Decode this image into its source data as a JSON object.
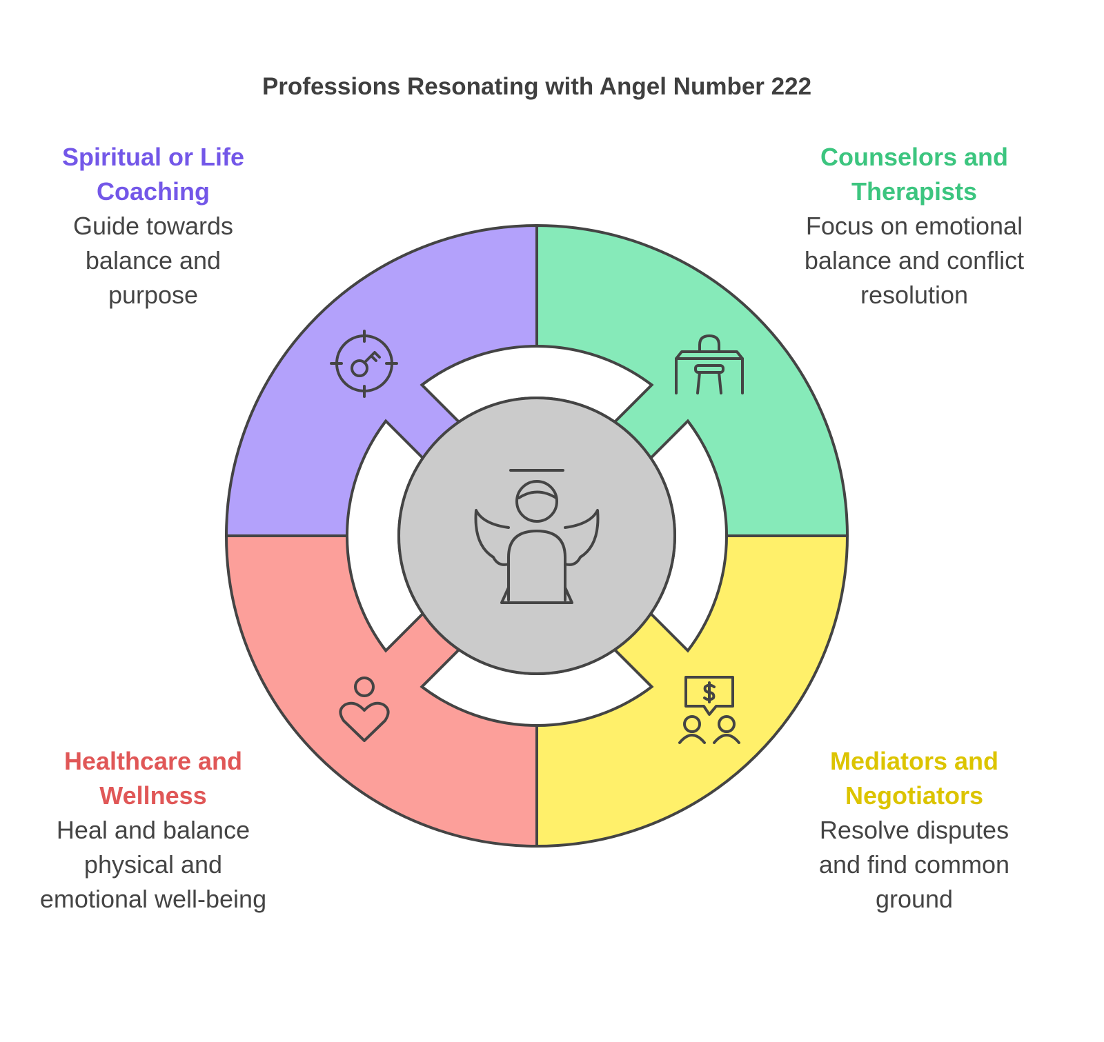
{
  "title": "Professions Resonating with Angel Number 222",
  "sections": [
    {
      "id": "spiritual",
      "title": "Spiritual or Life Coaching",
      "description": "Guide towards balance and purpose",
      "fill": "#b3a1fb",
      "title_color": "#7357e8",
      "icon": "target-key-icon"
    },
    {
      "id": "counselors",
      "title": "Counselors and Therapists",
      "description": "Focus on emotional balance and conflict resolution",
      "fill": "#86eab9",
      "title_color": "#3cc57f",
      "icon": "therapy-desk-icon"
    },
    {
      "id": "mediators",
      "title": "Mediators and Negotiators",
      "description": "Resolve disputes and find common ground",
      "fill": "#fff06a",
      "title_color": "#dcc400",
      "icon": "negotiation-icon"
    },
    {
      "id": "healthcare",
      "title": "Healthcare and Wellness",
      "description": "Heal and balance physical and emotional well-being",
      "fill": "#fc9f9a",
      "title_color": "#e05757",
      "icon": "person-heart-icon"
    }
  ],
  "center": {
    "fill": "#cbcbcb",
    "icon": "angel-icon"
  }
}
